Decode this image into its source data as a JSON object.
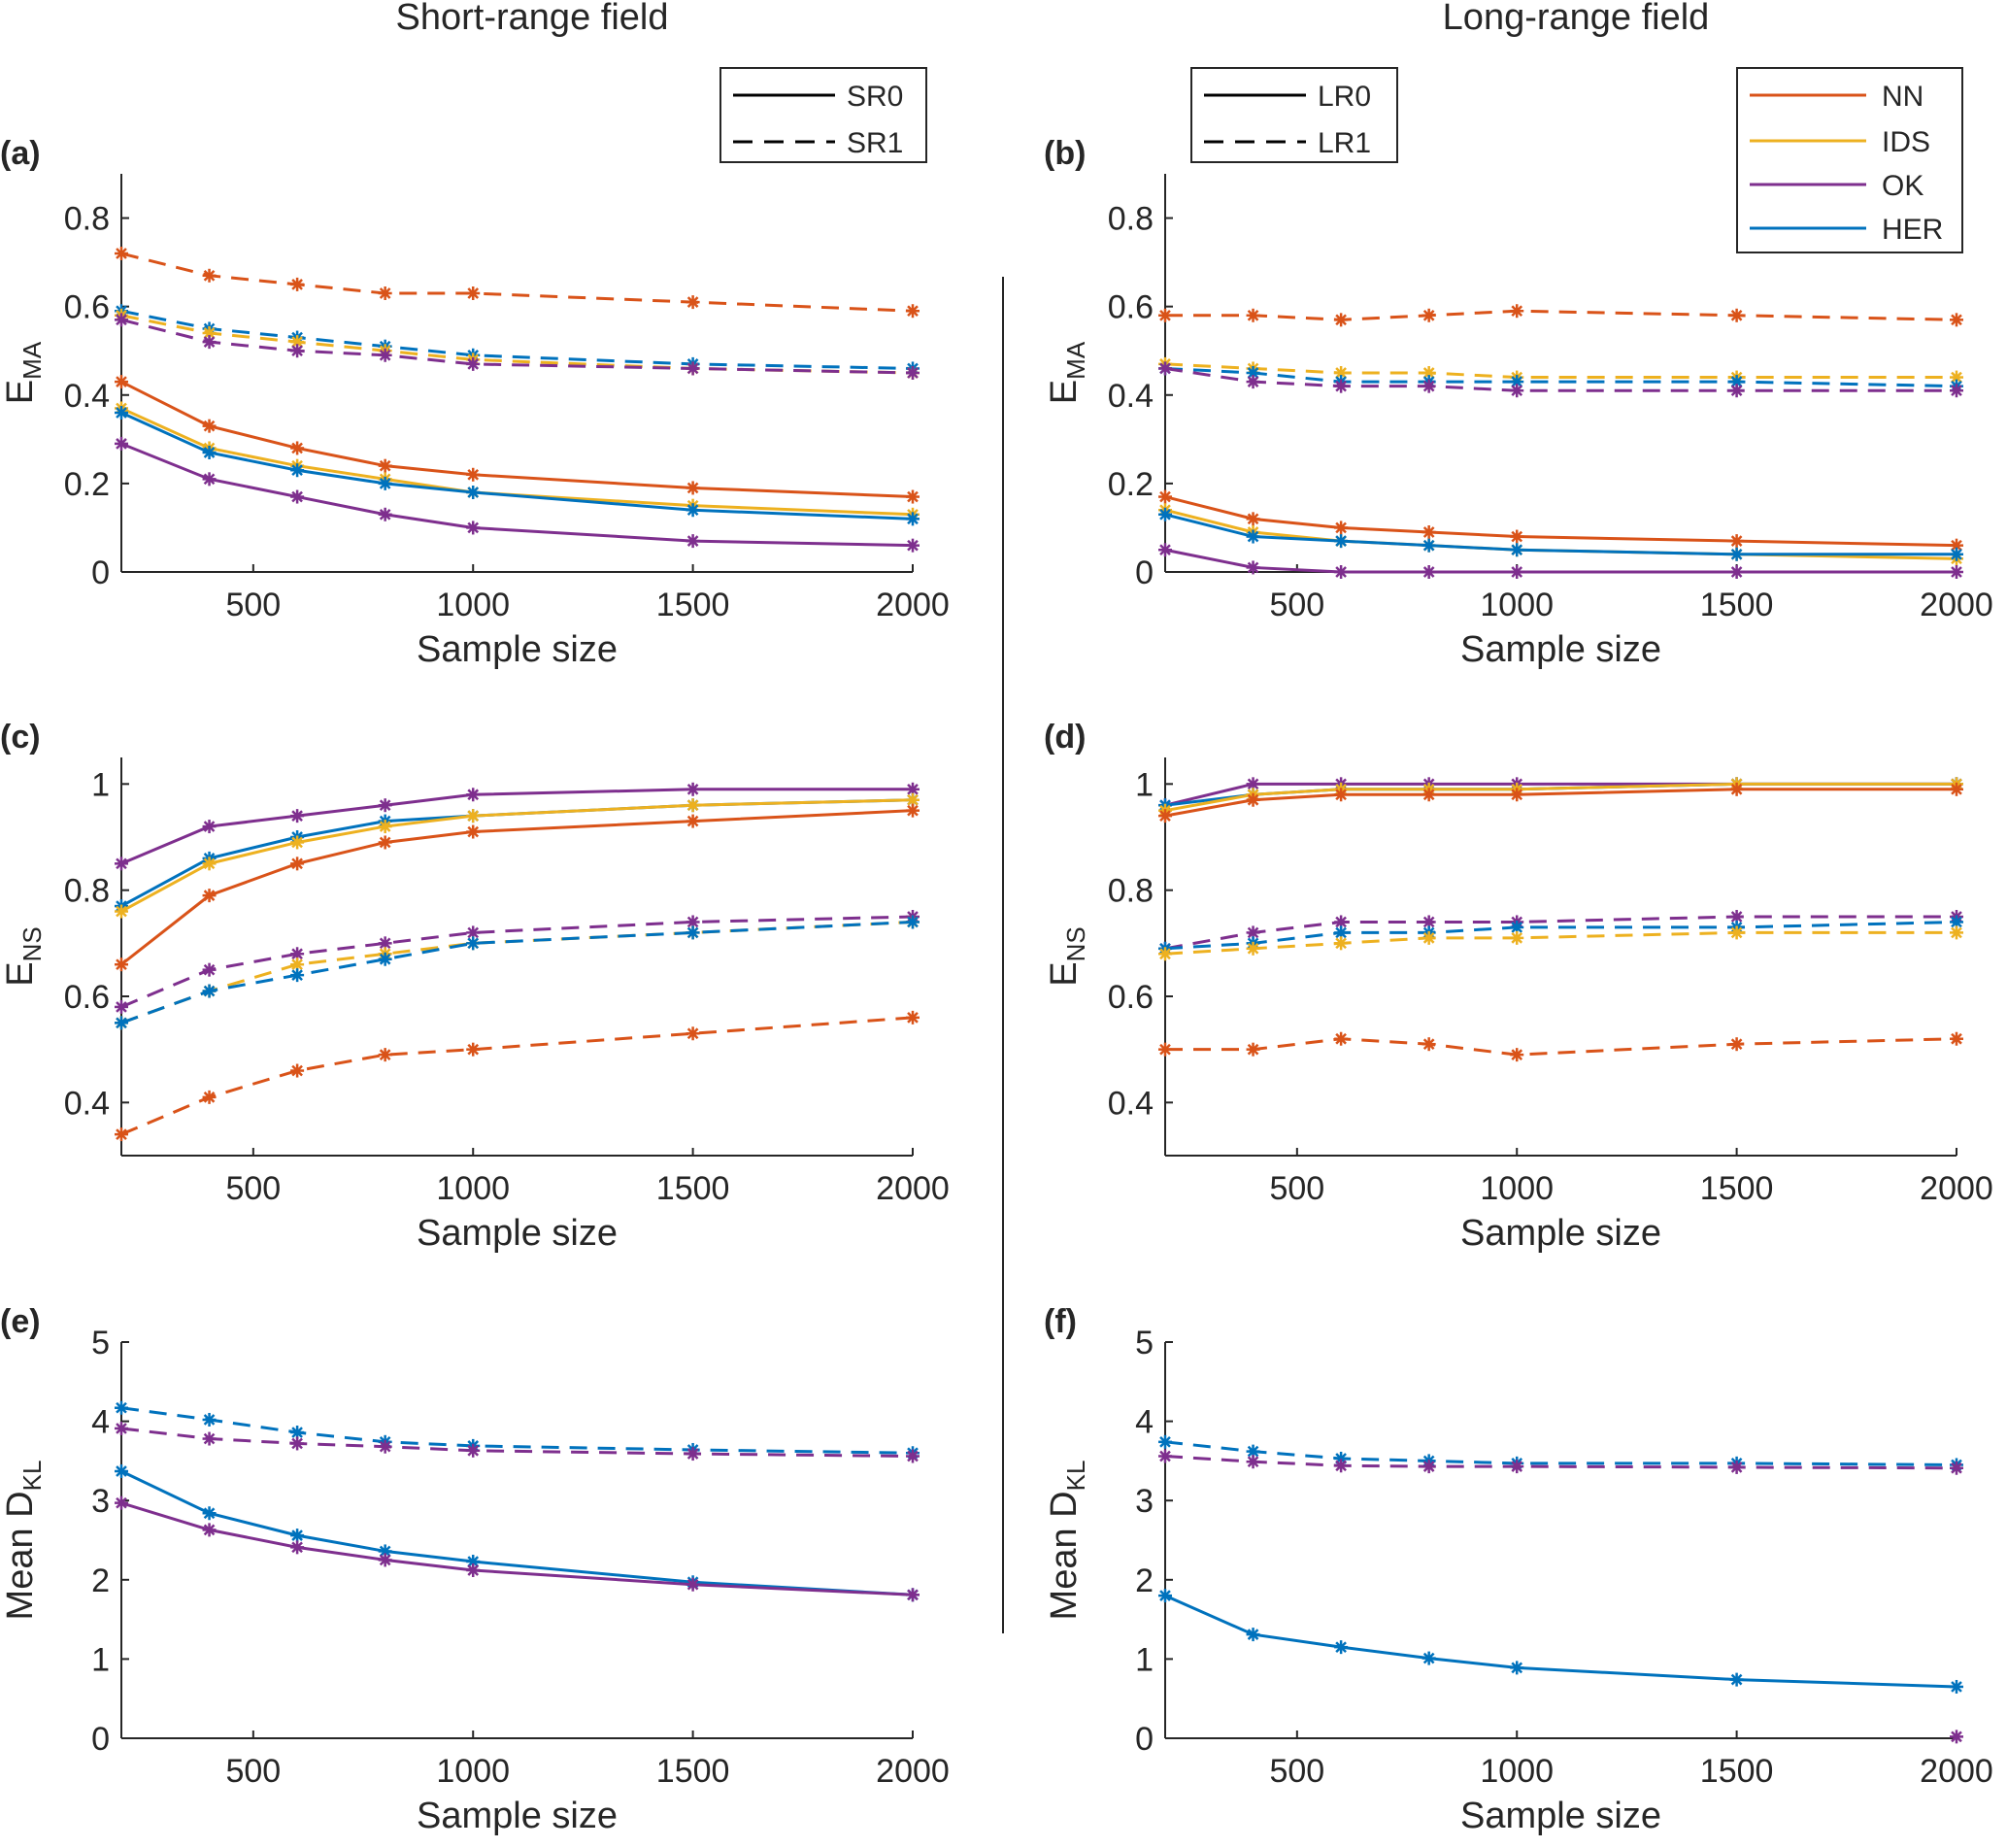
{
  "column_titles": [
    "Short-range field",
    "Long-range field"
  ],
  "colors": {
    "NN": "#D95319",
    "IDS": "#EDB120",
    "OK": "#7E2F8E",
    "HER": "#0072BD",
    "axis": "#262626"
  },
  "legends": {
    "short_range": [
      {
        "label": "SR0",
        "style": "solid"
      },
      {
        "label": "SR1",
        "style": "dashed"
      }
    ],
    "long_range": [
      {
        "label": "LR0",
        "style": "solid"
      },
      {
        "label": "LR1",
        "style": "dashed"
      }
    ],
    "methods": [
      {
        "label": "NN",
        "color": "#D95319"
      },
      {
        "label": "IDS",
        "color": "#EDB120"
      },
      {
        "label": "OK",
        "color": "#7E2F8E"
      },
      {
        "label": "HER",
        "color": "#0072BD"
      }
    ]
  },
  "chart_data": [
    {
      "id": "a",
      "panel_label": "(a)",
      "type": "line",
      "xlabel": "Sample size",
      "ylabel_main": "E",
      "ylabel_sub": "MA",
      "xlim": [
        200,
        2000
      ],
      "ylim": [
        0,
        0.9
      ],
      "xticks": [
        500,
        1000,
        1500,
        2000
      ],
      "xtick_labels": [
        "500",
        "1000",
        "1500",
        "2000"
      ],
      "yticks": [
        0,
        0.2,
        0.4,
        0.6,
        0.8
      ],
      "ytick_labels": [
        "0",
        "0.2",
        "0.4",
        "0.6",
        "0.8"
      ],
      "x": [
        200,
        400,
        600,
        800,
        1000,
        1500,
        2000
      ],
      "series": [
        {
          "name": "NN SR1",
          "method": "NN",
          "style": "dashed",
          "values": [
            0.72,
            0.67,
            0.65,
            0.63,
            0.63,
            0.61,
            0.59
          ]
        },
        {
          "name": "HER SR1",
          "method": "HER",
          "style": "dashed",
          "values": [
            0.59,
            0.55,
            0.53,
            0.51,
            0.49,
            0.47,
            0.46
          ]
        },
        {
          "name": "IDS SR1",
          "method": "IDS",
          "style": "dashed",
          "values": [
            0.58,
            0.54,
            0.52,
            0.5,
            0.48,
            0.46,
            0.45
          ]
        },
        {
          "name": "OK SR1",
          "method": "OK",
          "style": "dashed",
          "values": [
            0.57,
            0.52,
            0.5,
            0.49,
            0.47,
            0.46,
            0.45
          ]
        },
        {
          "name": "NN SR0",
          "method": "NN",
          "style": "solid",
          "values": [
            0.43,
            0.33,
            0.28,
            0.24,
            0.22,
            0.19,
            0.17
          ]
        },
        {
          "name": "IDS SR0",
          "method": "IDS",
          "style": "solid",
          "values": [
            0.37,
            0.28,
            0.24,
            0.21,
            0.18,
            0.15,
            0.13
          ]
        },
        {
          "name": "HER SR0",
          "method": "HER",
          "style": "solid",
          "values": [
            0.36,
            0.27,
            0.23,
            0.2,
            0.18,
            0.14,
            0.12
          ]
        },
        {
          "name": "OK SR0",
          "method": "OK",
          "style": "solid",
          "values": [
            0.29,
            0.21,
            0.17,
            0.13,
            0.1,
            0.07,
            0.06
          ]
        }
      ]
    },
    {
      "id": "b",
      "panel_label": "(b)",
      "type": "line",
      "xlabel": "Sample size",
      "ylabel_main": "E",
      "ylabel_sub": "MA",
      "xlim": [
        200,
        2000
      ],
      "ylim": [
        0,
        0.9
      ],
      "xticks": [
        500,
        1000,
        1500,
        2000
      ],
      "xtick_labels": [
        "500",
        "1000",
        "1500",
        "2000"
      ],
      "yticks": [
        0,
        0.2,
        0.4,
        0.6,
        0.8
      ],
      "ytick_labels": [
        "0",
        "0.2",
        "0.4",
        "0.6",
        "0.8"
      ],
      "x": [
        200,
        400,
        600,
        800,
        1000,
        1500,
        2000
      ],
      "series": [
        {
          "name": "NN LR1",
          "method": "NN",
          "style": "dashed",
          "values": [
            0.58,
            0.58,
            0.57,
            0.58,
            0.59,
            0.58,
            0.57
          ]
        },
        {
          "name": "IDS LR1",
          "method": "IDS",
          "style": "dashed",
          "values": [
            0.47,
            0.46,
            0.45,
            0.45,
            0.44,
            0.44,
            0.44
          ]
        },
        {
          "name": "HER LR1",
          "method": "HER",
          "style": "dashed",
          "values": [
            0.46,
            0.45,
            0.43,
            0.43,
            0.43,
            0.43,
            0.42
          ]
        },
        {
          "name": "OK LR1",
          "method": "OK",
          "style": "dashed",
          "values": [
            0.46,
            0.43,
            0.42,
            0.42,
            0.41,
            0.41,
            0.41
          ]
        },
        {
          "name": "NN LR0",
          "method": "NN",
          "style": "solid",
          "values": [
            0.17,
            0.12,
            0.1,
            0.09,
            0.08,
            0.07,
            0.06
          ]
        },
        {
          "name": "IDS LR0",
          "method": "IDS",
          "style": "solid",
          "values": [
            0.14,
            0.09,
            0.07,
            0.06,
            0.05,
            0.04,
            0.03
          ]
        },
        {
          "name": "HER LR0",
          "method": "HER",
          "style": "solid",
          "values": [
            0.13,
            0.08,
            0.07,
            0.06,
            0.05,
            0.04,
            0.04
          ]
        },
        {
          "name": "OK LR0",
          "method": "OK",
          "style": "solid",
          "values": [
            0.05,
            0.01,
            0.0,
            0.0,
            0.0,
            0.0,
            0.0
          ]
        }
      ]
    },
    {
      "id": "c",
      "panel_label": "(c)",
      "type": "line",
      "xlabel": "Sample size",
      "ylabel_main": "E",
      "ylabel_sub": "NS",
      "xlim": [
        200,
        2000
      ],
      "ylim": [
        0.3,
        1.05
      ],
      "xticks": [
        500,
        1000,
        1500,
        2000
      ],
      "xtick_labels": [
        "500",
        "1000",
        "1500",
        "2000"
      ],
      "yticks": [
        0.4,
        0.6,
        0.8,
        1.0
      ],
      "ytick_labels": [
        "0.4",
        "0.6",
        "0.8",
        "1"
      ],
      "x": [
        200,
        400,
        600,
        800,
        1000,
        1500,
        2000
      ],
      "series": [
        {
          "name": "OK SR0",
          "method": "OK",
          "style": "solid",
          "values": [
            0.85,
            0.92,
            0.94,
            0.96,
            0.98,
            0.99,
            0.99
          ]
        },
        {
          "name": "HER SR0",
          "method": "HER",
          "style": "solid",
          "values": [
            0.77,
            0.86,
            0.9,
            0.93,
            0.94,
            0.96,
            0.97
          ]
        },
        {
          "name": "IDS SR0",
          "method": "IDS",
          "style": "solid",
          "values": [
            0.76,
            0.85,
            0.89,
            0.92,
            0.94,
            0.96,
            0.97
          ]
        },
        {
          "name": "NN SR0",
          "method": "NN",
          "style": "solid",
          "values": [
            0.66,
            0.79,
            0.85,
            0.89,
            0.91,
            0.93,
            0.95
          ]
        },
        {
          "name": "OK SR1",
          "method": "OK",
          "style": "dashed",
          "values": [
            0.58,
            0.65,
            0.68,
            0.7,
            0.72,
            0.74,
            0.75
          ]
        },
        {
          "name": "IDS SR1",
          "method": "IDS",
          "style": "dashed",
          "values": [
            0.55,
            0.61,
            0.66,
            0.68,
            0.7,
            0.72,
            0.74
          ]
        },
        {
          "name": "HER SR1",
          "method": "HER",
          "style": "dashed",
          "values": [
            0.55,
            0.61,
            0.64,
            0.67,
            0.7,
            0.72,
            0.74
          ]
        },
        {
          "name": "NN SR1",
          "method": "NN",
          "style": "dashed",
          "values": [
            0.34,
            0.41,
            0.46,
            0.49,
            0.5,
            0.53,
            0.56
          ]
        }
      ]
    },
    {
      "id": "d",
      "panel_label": "(d)",
      "type": "line",
      "xlabel": "Sample size",
      "ylabel_main": "E",
      "ylabel_sub": "NS",
      "xlim": [
        200,
        2000
      ],
      "ylim": [
        0.3,
        1.05
      ],
      "xticks": [
        500,
        1000,
        1500,
        2000
      ],
      "xtick_labels": [
        "500",
        "1000",
        "1500",
        "2000"
      ],
      "yticks": [
        0.4,
        0.6,
        0.8,
        1.0
      ],
      "ytick_labels": [
        "0.4",
        "0.6",
        "0.8",
        "1"
      ],
      "x": [
        200,
        400,
        600,
        800,
        1000,
        1500,
        2000
      ],
      "series": [
        {
          "name": "OK LR0",
          "method": "OK",
          "style": "solid",
          "values": [
            0.96,
            1.0,
            1.0,
            1.0,
            1.0,
            1.0,
            1.0
          ]
        },
        {
          "name": "HER LR0",
          "method": "HER",
          "style": "solid",
          "values": [
            0.96,
            0.98,
            0.99,
            0.99,
            0.99,
            1.0,
            1.0
          ]
        },
        {
          "name": "IDS LR0",
          "method": "IDS",
          "style": "solid",
          "values": [
            0.95,
            0.98,
            0.99,
            0.99,
            0.99,
            1.0,
            1.0
          ]
        },
        {
          "name": "NN LR0",
          "method": "NN",
          "style": "solid",
          "values": [
            0.94,
            0.97,
            0.98,
            0.98,
            0.98,
            0.99,
            0.99
          ]
        },
        {
          "name": "OK LR1",
          "method": "OK",
          "style": "dashed",
          "values": [
            0.69,
            0.72,
            0.74,
            0.74,
            0.74,
            0.75,
            0.75
          ]
        },
        {
          "name": "HER LR1",
          "method": "HER",
          "style": "dashed",
          "values": [
            0.69,
            0.7,
            0.72,
            0.72,
            0.73,
            0.73,
            0.74
          ]
        },
        {
          "name": "IDS LR1",
          "method": "IDS",
          "style": "dashed",
          "values": [
            0.68,
            0.69,
            0.7,
            0.71,
            0.71,
            0.72,
            0.72
          ]
        },
        {
          "name": "NN LR1",
          "method": "NN",
          "style": "dashed",
          "values": [
            0.5,
            0.5,
            0.52,
            0.51,
            0.49,
            0.51,
            0.52
          ]
        }
      ]
    },
    {
      "id": "e",
      "panel_label": "(e)",
      "type": "line",
      "xlabel": "Sample size",
      "ylabel_main": "Mean D",
      "ylabel_sub": "KL",
      "xlim": [
        200,
        2000
      ],
      "ylim": [
        0,
        5
      ],
      "xticks": [
        500,
        1000,
        1500,
        2000
      ],
      "xtick_labels": [
        "500",
        "1000",
        "1500",
        "2000"
      ],
      "yticks": [
        0,
        1,
        2,
        3,
        4,
        5
      ],
      "ytick_labels": [
        "0",
        "1",
        "2",
        "3",
        "4",
        "5"
      ],
      "x": [
        200,
        400,
        600,
        800,
        1000,
        1500,
        2000
      ],
      "series": [
        {
          "name": "HER SR1",
          "method": "HER",
          "style": "dashed",
          "values": [
            4.17,
            4.02,
            3.86,
            3.74,
            3.69,
            3.64,
            3.6
          ]
        },
        {
          "name": "OK SR1",
          "method": "OK",
          "style": "dashed",
          "values": [
            3.91,
            3.78,
            3.72,
            3.68,
            3.63,
            3.59,
            3.56
          ]
        },
        {
          "name": "HER SR0",
          "method": "HER",
          "style": "solid",
          "values": [
            3.37,
            2.84,
            2.56,
            2.36,
            2.23,
            1.97,
            1.81
          ]
        },
        {
          "name": "OK SR0",
          "method": "OK",
          "style": "solid",
          "values": [
            2.97,
            2.63,
            2.41,
            2.25,
            2.12,
            1.94,
            1.81
          ]
        }
      ]
    },
    {
      "id": "f",
      "panel_label": "(f)",
      "type": "line",
      "xlabel": "Sample size",
      "ylabel_main": "Mean D",
      "ylabel_sub": "KL",
      "xlim": [
        200,
        2000
      ],
      "ylim": [
        0,
        5
      ],
      "xticks": [
        500,
        1000,
        1500,
        2000
      ],
      "xtick_labels": [
        "500",
        "1000",
        "1500",
        "2000"
      ],
      "yticks": [
        0,
        1,
        2,
        3,
        4,
        5
      ],
      "ytick_labels": [
        "0",
        "1",
        "2",
        "3",
        "4",
        "5"
      ],
      "x": [
        200,
        400,
        600,
        800,
        1000,
        1500,
        2000
      ],
      "series": [
        {
          "name": "HER LR1",
          "method": "HER",
          "style": "dashed",
          "values": [
            3.74,
            3.62,
            3.53,
            3.5,
            3.47,
            3.47,
            3.45
          ]
        },
        {
          "name": "OK LR1",
          "method": "OK",
          "style": "dashed",
          "values": [
            3.56,
            3.49,
            3.44,
            3.43,
            3.43,
            3.42,
            3.41
          ]
        },
        {
          "name": "HER LR0",
          "method": "HER",
          "style": "solid",
          "values": [
            1.8,
            1.31,
            1.15,
            1.01,
            0.89,
            0.74,
            0.65
          ]
        },
        {
          "name": "OK LR0",
          "method": "OK",
          "style": "solid",
          "values": [
            null,
            null,
            null,
            null,
            null,
            null,
            0.02
          ]
        }
      ]
    }
  ]
}
